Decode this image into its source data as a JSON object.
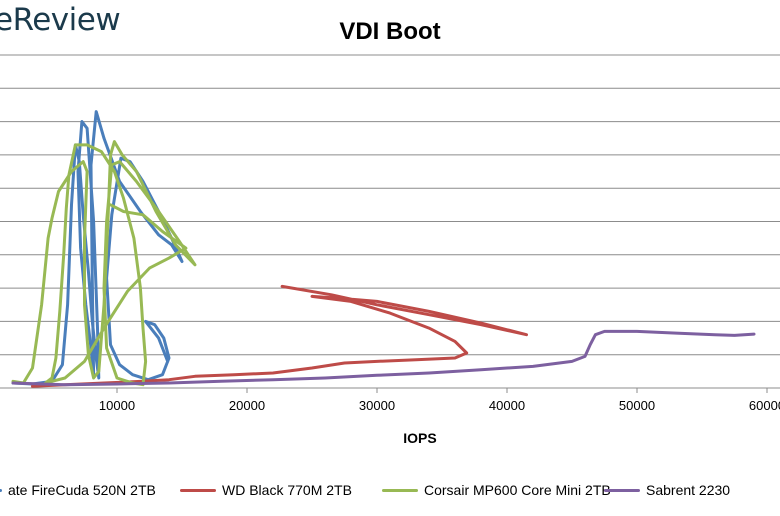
{
  "logo": {
    "text": "eReview"
  },
  "chart_data": {
    "type": "line",
    "title": "VDI Boot",
    "xlabel": "IOPS",
    "ylabel": "",
    "xlim": [
      2000,
      61000
    ],
    "ylim": [
      0,
      10
    ],
    "x_ticks": [
      10000,
      20000,
      30000,
      40000,
      50000,
      60000
    ],
    "y_grid": [
      1,
      2,
      3,
      4,
      5,
      6,
      7,
      8,
      9,
      10
    ],
    "grid": "horizontal",
    "legend_position": "bottom",
    "series": [
      {
        "name": "ate FireCuda 520N 2TB",
        "color": "#4a7ebb",
        "points": [
          [
            2000,
            0.15
          ],
          [
            3500,
            0.12
          ],
          [
            5000,
            0.2
          ],
          [
            5800,
            0.7
          ],
          [
            6200,
            2.5
          ],
          [
            6500,
            5.5
          ],
          [
            6800,
            7.3
          ],
          [
            7100,
            6.8
          ],
          [
            7400,
            5.2
          ],
          [
            7800,
            3.5
          ],
          [
            8100,
            2.0
          ],
          [
            8400,
            0.9
          ],
          [
            8600,
            0.3
          ],
          [
            8500,
            1.8
          ],
          [
            8200,
            5.0
          ],
          [
            7700,
            7.8
          ],
          [
            7300,
            8.0
          ],
          [
            7000,
            6.5
          ],
          [
            7200,
            4.2
          ],
          [
            7600,
            2.5
          ],
          [
            8000,
            1.2
          ],
          [
            8200,
            0.4
          ],
          [
            8100,
            3.2
          ],
          [
            8000,
            6.7
          ],
          [
            8400,
            8.3
          ],
          [
            9000,
            7.5
          ],
          [
            10200,
            6.2
          ],
          [
            11800,
            5.3
          ],
          [
            13200,
            4.6
          ],
          [
            14200,
            4.3
          ],
          [
            15000,
            3.8
          ],
          [
            14200,
            4.5
          ],
          [
            13200,
            5.3
          ],
          [
            12000,
            6.2
          ],
          [
            11000,
            6.8
          ],
          [
            10300,
            6.9
          ],
          [
            9600,
            5.2
          ],
          [
            9200,
            3.3
          ],
          [
            9500,
            1.3
          ],
          [
            10200,
            0.7
          ],
          [
            11200,
            0.4
          ],
          [
            12400,
            0.25
          ],
          [
            13500,
            0.4
          ],
          [
            14000,
            0.9
          ],
          [
            13600,
            1.5
          ],
          [
            12900,
            1.9
          ],
          [
            12200,
            2.0
          ],
          [
            13200,
            1.5
          ],
          [
            13900,
            0.8
          ]
        ]
      },
      {
        "name": "WD Black 770M 2TB",
        "color": "#be4b48",
        "points": [
          [
            3500,
            0.05
          ],
          [
            6000,
            0.1
          ],
          [
            9000,
            0.15
          ],
          [
            12000,
            0.2
          ],
          [
            14000,
            0.25
          ],
          [
            16000,
            0.35
          ],
          [
            19000,
            0.4
          ],
          [
            22000,
            0.45
          ],
          [
            25000,
            0.6
          ],
          [
            27500,
            0.75
          ],
          [
            30000,
            0.8
          ],
          [
            33000,
            0.85
          ],
          [
            36000,
            0.9
          ],
          [
            36900,
            1.05
          ],
          [
            36000,
            1.4
          ],
          [
            34000,
            1.8
          ],
          [
            31000,
            2.25
          ],
          [
            28000,
            2.6
          ],
          [
            25000,
            2.75
          ],
          [
            27000,
            2.7
          ],
          [
            30000,
            2.6
          ],
          [
            34000,
            2.3
          ],
          [
            38000,
            1.95
          ],
          [
            41500,
            1.6
          ],
          [
            38000,
            1.9
          ],
          [
            34000,
            2.2
          ],
          [
            30000,
            2.5
          ],
          [
            26500,
            2.8
          ],
          [
            22700,
            3.05
          ]
        ]
      },
      {
        "name": "Corsair MP600 Core Mini 2TB",
        "color": "#98b954",
        "points": [
          [
            2000,
            0.2
          ],
          [
            2800,
            0.15
          ],
          [
            3500,
            0.6
          ],
          [
            4200,
            2.5
          ],
          [
            4700,
            4.5
          ],
          [
            5000,
            5.1
          ],
          [
            5500,
            5.9
          ],
          [
            6500,
            6.5
          ],
          [
            7400,
            6.8
          ],
          [
            7700,
            6.5
          ],
          [
            7500,
            4.5
          ],
          [
            7500,
            2.5
          ],
          [
            7800,
            1.0
          ],
          [
            8200,
            0.3
          ],
          [
            8600,
            0.5
          ],
          [
            9000,
            2.5
          ],
          [
            9300,
            5.0
          ],
          [
            9500,
            7.0
          ],
          [
            9800,
            7.4
          ],
          [
            10400,
            7.0
          ],
          [
            11500,
            6.5
          ],
          [
            13000,
            5.3
          ],
          [
            14500,
            4.3
          ],
          [
            16000,
            3.7
          ],
          [
            14800,
            4.4
          ],
          [
            13200,
            5.3
          ],
          [
            11500,
            6.2
          ],
          [
            10200,
            6.8
          ],
          [
            9600,
            6.7
          ],
          [
            9200,
            5.0
          ],
          [
            9000,
            3.0
          ],
          [
            9200,
            1.2
          ],
          [
            10000,
            0.3
          ],
          [
            11200,
            0.15
          ],
          [
            12000,
            0.1
          ],
          [
            12200,
            0.8
          ],
          [
            12000,
            1.8
          ],
          [
            11800,
            3.0
          ],
          [
            11300,
            4.5
          ],
          [
            10500,
            5.7
          ],
          [
            9800,
            6.5
          ],
          [
            8800,
            7.1
          ],
          [
            7700,
            7.3
          ],
          [
            6800,
            7.3
          ],
          [
            6300,
            6.4
          ],
          [
            6100,
            5.4
          ],
          [
            5900,
            4.0
          ],
          [
            5600,
            2.3
          ],
          [
            5300,
            0.9
          ],
          [
            5000,
            0.3
          ],
          [
            4500,
            0.15
          ],
          [
            5000,
            0.2
          ],
          [
            6000,
            0.3
          ],
          [
            7500,
            0.8
          ],
          [
            9000,
            1.8
          ],
          [
            10800,
            2.9
          ],
          [
            12500,
            3.6
          ],
          [
            14000,
            3.9
          ],
          [
            15300,
            4.2
          ],
          [
            13500,
            4.7
          ],
          [
            12000,
            5.2
          ],
          [
            10500,
            5.3
          ],
          [
            9500,
            5.5
          ]
        ]
      },
      {
        "name": "Sabrent 2230",
        "color": "#7d60a0",
        "points": [
          [
            2000,
            0.15
          ],
          [
            6000,
            0.1
          ],
          [
            10000,
            0.12
          ],
          [
            14000,
            0.15
          ],
          [
            18000,
            0.2
          ],
          [
            22000,
            0.25
          ],
          [
            26000,
            0.3
          ],
          [
            30000,
            0.38
          ],
          [
            34000,
            0.45
          ],
          [
            38000,
            0.55
          ],
          [
            42000,
            0.65
          ],
          [
            45000,
            0.8
          ],
          [
            46000,
            0.95
          ],
          [
            46400,
            1.3
          ],
          [
            46800,
            1.6
          ],
          [
            47500,
            1.7
          ],
          [
            50000,
            1.7
          ],
          [
            53000,
            1.65
          ],
          [
            56000,
            1.6
          ],
          [
            57500,
            1.58
          ],
          [
            59000,
            1.62
          ]
        ]
      }
    ]
  }
}
